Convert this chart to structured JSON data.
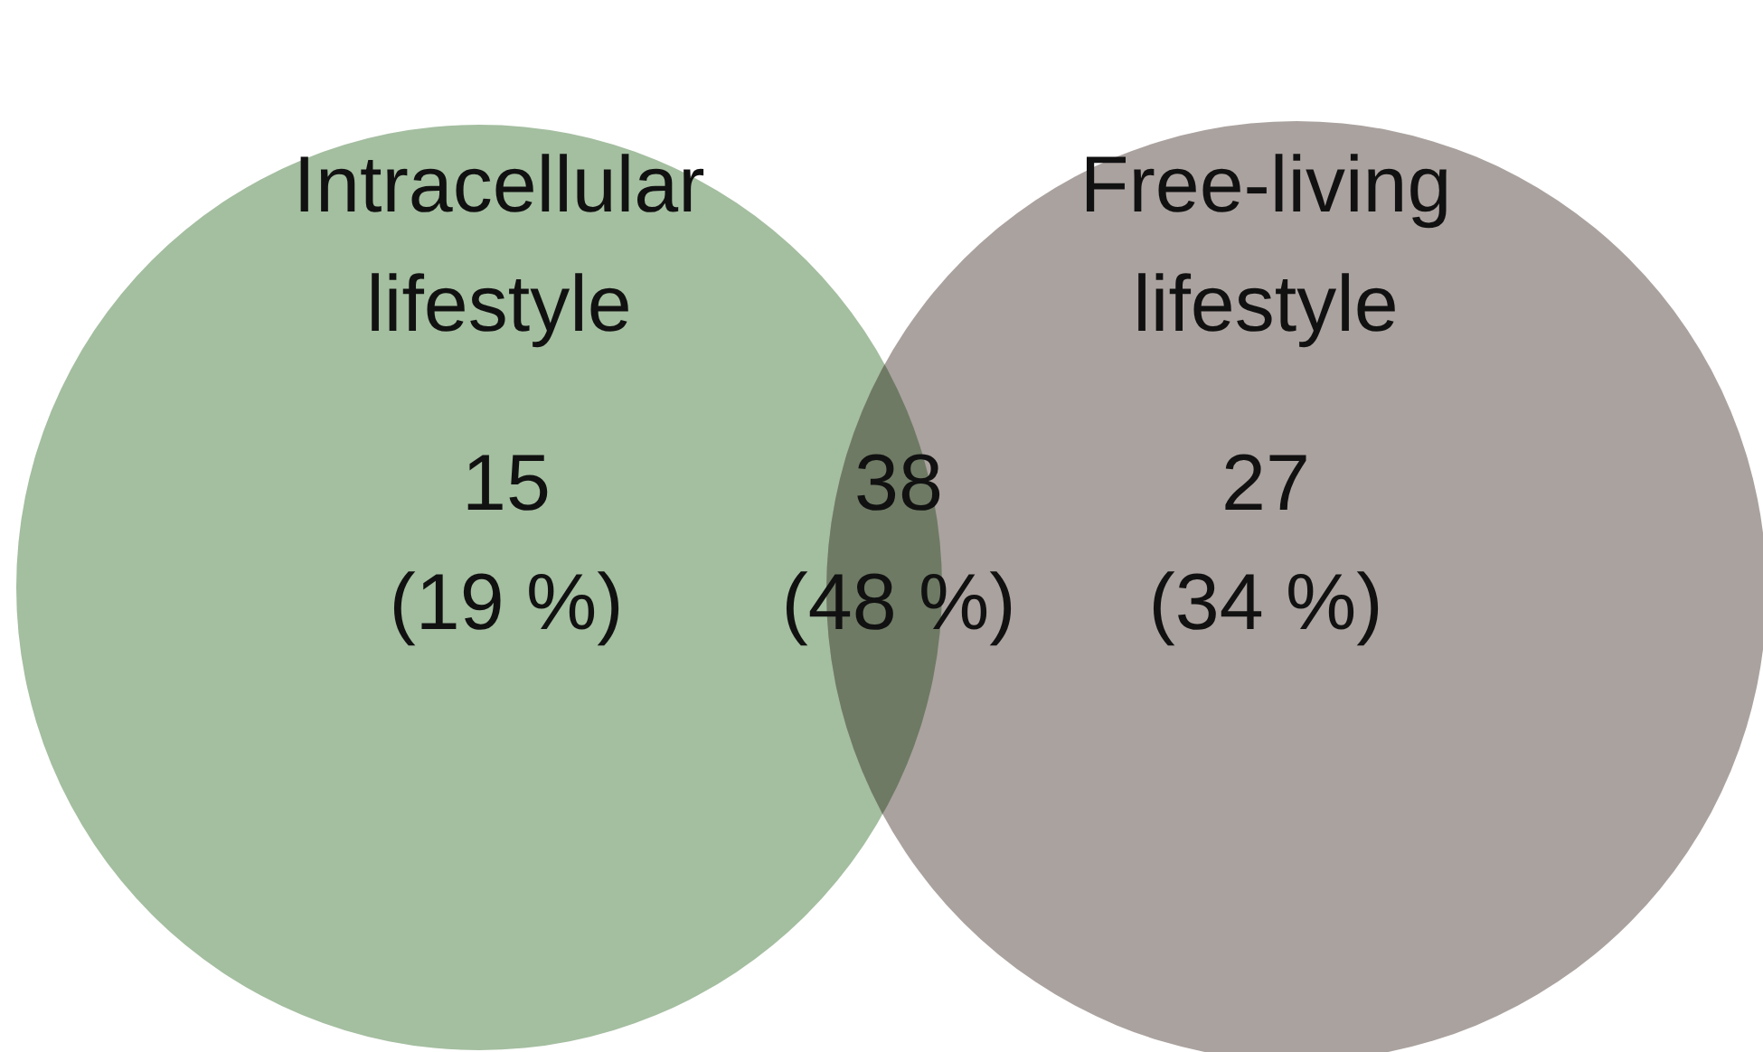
{
  "chart_data": {
    "type": "other",
    "categories": [
      "Intracellular lifestyle",
      null,
      "Free-living lifestyle"
    ],
    "values": [
      15,
      38,
      27
    ],
    "data_labels": true,
    "annotations": [
      "(19 %)",
      "(48 %)",
      "(34 %)"
    ],
    "colors": [
      "#a4bea0",
      "#6e7a64",
      "#aaa29f"
    ]
  }
}
